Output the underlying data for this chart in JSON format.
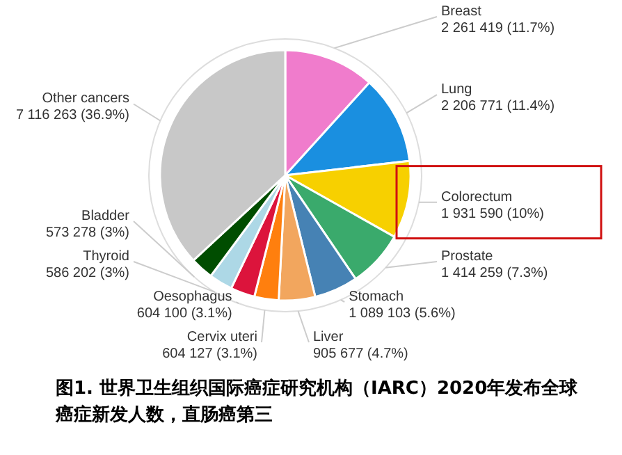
{
  "chart_data": {
    "type": "pie",
    "categories": [
      "Breast",
      "Lung",
      "Colorectum",
      "Prostate",
      "Stomach",
      "Liver",
      "Cervix uteri",
      "Oesophagus",
      "Thyroid",
      "Bladder",
      "Other cancers"
    ],
    "values": [
      2261419,
      2206771,
      1931590,
      1414259,
      1089103,
      905677,
      604127,
      604100,
      586202,
      573278,
      7116263
    ],
    "value_labels": [
      "2 261 419 (11.7%)",
      "2 206 771 (11.4%)",
      "1 931 590 (10%)",
      "1 414 259 (7.3%)",
      "1 089 103 (5.6%)",
      "905 677 (4.7%)",
      "604 127 (3.1%)",
      "604 100 (3.1%)",
      "586 202 (3%)",
      "573 278 (3%)",
      "7 116 263 (36.9%)"
    ],
    "colors": [
      "#f07ccc",
      "#1a8fe0",
      "#f7d000",
      "#3aaa6c",
      "#4682b4",
      "#f2a65e",
      "#ff7f0e",
      "#dc143c",
      "#add8e6",
      "#004d00",
      "#c8c8c8"
    ],
    "annotations": [
      "图1. 世界卫生组织国际癌症研究机构（IARC）2020年发布全球癌症新发人数，直肠癌第三"
    ]
  }
}
